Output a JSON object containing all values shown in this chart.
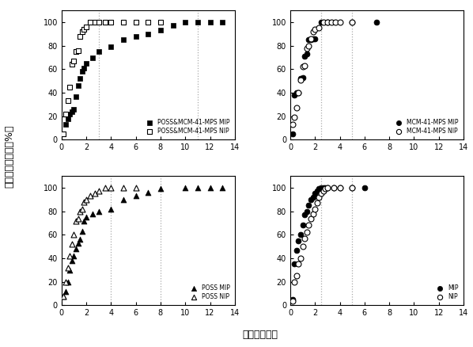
{
  "subplot1": {
    "mip_x": [
      0.17,
      0.33,
      0.5,
      0.67,
      0.83,
      1.0,
      1.17,
      1.33,
      1.5,
      1.67,
      1.83,
      2.0,
      2.5,
      3.0,
      4.0,
      5.0,
      6.0,
      7.0,
      8.0,
      9.0,
      10.0,
      11.0,
      12.0,
      13.0
    ],
    "mip_y": [
      5,
      13,
      18,
      22,
      24,
      26,
      37,
      46,
      52,
      58,
      61,
      65,
      70,
      75,
      79,
      85,
      88,
      90,
      93,
      97,
      100,
      100,
      100,
      100
    ],
    "nip_x": [
      0.17,
      0.33,
      0.5,
      0.67,
      0.83,
      1.0,
      1.17,
      1.33,
      1.5,
      1.67,
      1.83,
      2.0,
      2.33,
      2.67,
      3.0,
      3.5,
      4.0,
      5.0,
      6.0,
      7.0,
      8.0
    ],
    "nip_y": [
      5,
      22,
      33,
      45,
      64,
      67,
      75,
      76,
      88,
      92,
      94,
      96,
      100,
      100,
      100,
      100,
      100,
      100,
      100,
      100,
      100
    ],
    "label_mip": "POSS&MCM-41-MPS MIP",
    "label_nip": "POSS&MCM-41-MPS NIP",
    "vlines": [
      3.0,
      11.0
    ]
  },
  "subplot2": {
    "mip_x": [
      0.17,
      0.33,
      0.5,
      0.67,
      0.83,
      1.0,
      1.17,
      1.33,
      1.5,
      1.67,
      1.83,
      2.0,
      2.5,
      3.0,
      5.0,
      7.0
    ],
    "mip_y": [
      5,
      38,
      40,
      40,
      52,
      53,
      71,
      73,
      85,
      85,
      86,
      86,
      100,
      100,
      100,
      100
    ],
    "nip_x": [
      0.17,
      0.33,
      0.5,
      0.67,
      0.83,
      1.0,
      1.17,
      1.33,
      1.5,
      1.67,
      1.83,
      2.0,
      2.33,
      2.67,
      3.0,
      3.33,
      3.67,
      4.0,
      5.0
    ],
    "nip_y": [
      13,
      19,
      27,
      40,
      51,
      62,
      63,
      78,
      80,
      86,
      92,
      94,
      95,
      100,
      100,
      100,
      100,
      100,
      100
    ],
    "label_mip": "MCM-41-MPS MIP",
    "label_nip": "MCM-41-MPS NIP",
    "vlines": [
      2.5,
      5.0
    ]
  },
  "subplot3": {
    "mip_x": [
      0.17,
      0.33,
      0.5,
      0.67,
      0.83,
      1.0,
      1.17,
      1.33,
      1.5,
      1.67,
      1.83,
      2.0,
      2.5,
      3.0,
      4.0,
      5.0,
      6.0,
      7.0,
      8.0,
      10.0,
      11.0,
      12.0,
      13.0
    ],
    "mip_y": [
      8,
      12,
      20,
      30,
      38,
      42,
      48,
      53,
      56,
      63,
      72,
      75,
      78,
      80,
      82,
      90,
      93,
      96,
      99,
      100,
      100,
      100,
      100
    ],
    "nip_x": [
      0.17,
      0.33,
      0.5,
      0.67,
      0.83,
      1.0,
      1.17,
      1.33,
      1.5,
      1.67,
      1.83,
      2.0,
      2.33,
      2.67,
      3.0,
      3.5,
      4.0,
      5.0,
      6.0
    ],
    "nip_y": [
      8,
      20,
      32,
      42,
      52,
      60,
      72,
      74,
      80,
      82,
      88,
      90,
      93,
      95,
      97,
      100,
      100,
      100,
      100
    ],
    "label_mip": "POSS MIP",
    "label_nip": "POSS NIP",
    "vlines": [
      4.0,
      8.0
    ]
  },
  "subplot4": {
    "mip_x": [
      0.17,
      0.33,
      0.5,
      0.67,
      0.83,
      1.0,
      1.17,
      1.33,
      1.5,
      1.67,
      1.83,
      2.0,
      2.17,
      2.33,
      2.5,
      2.67,
      2.83,
      3.0,
      3.5,
      4.0,
      5.0,
      6.0
    ],
    "mip_y": [
      5,
      35,
      47,
      55,
      60,
      68,
      77,
      80,
      85,
      90,
      92,
      95,
      97,
      99,
      100,
      100,
      100,
      100,
      100,
      100,
      100,
      100
    ],
    "nip_x": [
      0.17,
      0.33,
      0.5,
      0.67,
      0.83,
      1.0,
      1.17,
      1.33,
      1.5,
      1.67,
      1.83,
      2.0,
      2.17,
      2.33,
      2.5,
      2.67,
      2.83,
      3.0,
      3.5,
      4.0,
      5.0
    ],
    "nip_y": [
      4,
      20,
      25,
      35,
      40,
      50,
      57,
      62,
      68,
      74,
      78,
      82,
      87,
      92,
      95,
      97,
      99,
      100,
      100,
      100,
      100
    ],
    "label_mip": "MIP",
    "label_nip": "NIP",
    "vlines": [
      2.5,
      5.0
    ]
  },
  "ylabel": "药物累计释放量（%）",
  "xlabel": "时间（小时）",
  "ylim": [
    0,
    110
  ],
  "xlim": [
    0,
    14
  ],
  "yticks": [
    0,
    20,
    40,
    60,
    80,
    100
  ],
  "xticks": [
    0,
    2,
    4,
    6,
    8,
    10,
    12,
    14
  ],
  "background_color": "#ffffff",
  "marker_color": "black",
  "marker_size": 5,
  "vline_color": "#aaaaaa",
  "vline_style": ":"
}
